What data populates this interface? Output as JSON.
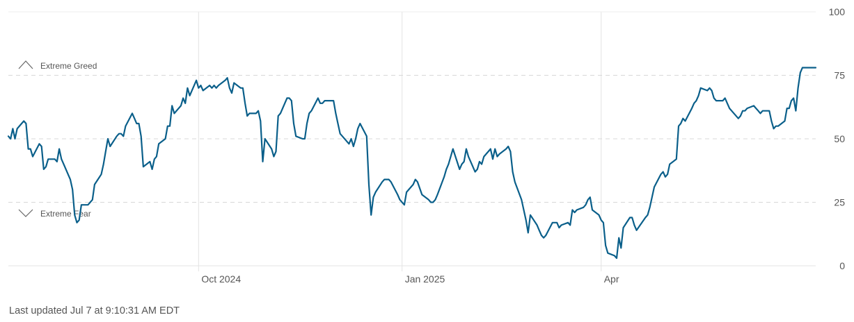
{
  "footer": {
    "last_updated": "Last updated Jul 7 at 9:10:31 AM EDT"
  },
  "colors": {
    "line": "#0a5f8a",
    "grid": "#e3e3e3",
    "dashed": "#d8d8d8",
    "text": "#555555",
    "zone_icon": "#666666"
  },
  "zones": {
    "greed": {
      "label": "Extreme Greed",
      "icon": "chevron-up-icon"
    },
    "fear": {
      "label": "Extreme Fear",
      "icon": "chevron-down-icon"
    }
  },
  "chart_data": {
    "type": "line",
    "title": "",
    "xlabel": "",
    "ylabel": "",
    "ylim": [
      0,
      100
    ],
    "y_ticks": [
      0,
      25,
      50,
      75,
      100
    ],
    "x_range": [
      "2024-07-07",
      "2025-07-07"
    ],
    "x_ticks": [
      {
        "date": "2024-10-01",
        "label": "Oct 2024"
      },
      {
        "date": "2025-01-01",
        "label": "Jan 2025"
      },
      {
        "date": "2025-04-01",
        "label": "Apr"
      }
    ],
    "grid": {
      "y": "dashed",
      "x": "vertical at tick dates"
    },
    "zone_lines": [
      25,
      75
    ],
    "series": [
      {
        "values": [
          [
            "2024-07-07",
            51
          ],
          [
            "2024-07-08",
            50
          ],
          [
            "2024-07-09",
            54
          ],
          [
            "2024-07-10",
            50
          ],
          [
            "2024-07-11",
            54
          ],
          [
            "2024-07-14",
            57
          ],
          [
            "2024-07-15",
            56
          ],
          [
            "2024-07-16",
            46
          ],
          [
            "2024-07-17",
            46
          ],
          [
            "2024-07-18",
            43
          ],
          [
            "2024-07-21",
            48
          ],
          [
            "2024-07-22",
            47
          ],
          [
            "2024-07-23",
            38
          ],
          [
            "2024-07-24",
            39
          ],
          [
            "2024-07-25",
            42
          ],
          [
            "2024-07-28",
            42
          ],
          [
            "2024-07-29",
            41
          ],
          [
            "2024-07-30",
            46
          ],
          [
            "2024-07-31",
            42
          ],
          [
            "2024-08-01",
            40
          ],
          [
            "2024-08-04",
            34
          ],
          [
            "2024-08-05",
            30
          ],
          [
            "2024-08-06",
            20
          ],
          [
            "2024-08-07",
            17
          ],
          [
            "2024-08-08",
            18
          ],
          [
            "2024-08-09",
            24
          ],
          [
            "2024-08-12",
            24
          ],
          [
            "2024-08-13",
            25
          ],
          [
            "2024-08-14",
            26
          ],
          [
            "2024-08-15",
            32
          ],
          [
            "2024-08-18",
            36
          ],
          [
            "2024-08-19",
            40
          ],
          [
            "2024-08-20",
            45
          ],
          [
            "2024-08-21",
            50
          ],
          [
            "2024-08-22",
            47
          ],
          [
            "2024-08-25",
            51
          ],
          [
            "2024-08-26",
            52
          ],
          [
            "2024-08-27",
            52
          ],
          [
            "2024-08-28",
            51
          ],
          [
            "2024-08-29",
            55
          ],
          [
            "2024-09-01",
            60
          ],
          [
            "2024-09-02",
            58
          ],
          [
            "2024-09-03",
            56
          ],
          [
            "2024-09-04",
            56
          ],
          [
            "2024-09-05",
            51
          ],
          [
            "2024-09-06",
            39
          ],
          [
            "2024-09-09",
            41
          ],
          [
            "2024-09-10",
            38
          ],
          [
            "2024-09-11",
            42
          ],
          [
            "2024-09-12",
            43
          ],
          [
            "2024-09-13",
            48
          ],
          [
            "2024-09-16",
            50
          ],
          [
            "2024-09-17",
            55
          ],
          [
            "2024-09-18",
            55
          ],
          [
            "2024-09-19",
            63
          ],
          [
            "2024-09-20",
            60
          ],
          [
            "2024-09-23",
            63
          ],
          [
            "2024-09-24",
            66
          ],
          [
            "2024-09-25",
            64
          ],
          [
            "2024-09-26",
            70
          ],
          [
            "2024-09-27",
            67
          ],
          [
            "2024-09-30",
            73
          ],
          [
            "2024-10-01",
            70
          ],
          [
            "2024-10-02",
            71
          ],
          [
            "2024-10-03",
            69
          ],
          [
            "2024-10-06",
            71
          ],
          [
            "2024-10-07",
            70
          ],
          [
            "2024-10-08",
            71
          ],
          [
            "2024-10-09",
            70
          ],
          [
            "2024-10-10",
            71
          ],
          [
            "2024-10-13",
            73
          ],
          [
            "2024-10-14",
            74
          ],
          [
            "2024-10-15",
            70
          ],
          [
            "2024-10-16",
            68
          ],
          [
            "2024-10-17",
            72
          ],
          [
            "2024-10-20",
            70
          ],
          [
            "2024-10-21",
            70
          ],
          [
            "2024-10-22",
            64
          ],
          [
            "2024-10-23",
            59
          ],
          [
            "2024-10-24",
            60
          ],
          [
            "2024-10-27",
            60
          ],
          [
            "2024-10-28",
            61
          ],
          [
            "2024-10-29",
            57
          ],
          [
            "2024-10-30",
            41
          ],
          [
            "2024-10-31",
            50
          ],
          [
            "2024-11-03",
            46
          ],
          [
            "2024-11-04",
            43
          ],
          [
            "2024-11-05",
            45
          ],
          [
            "2024-11-06",
            59
          ],
          [
            "2024-11-07",
            60
          ],
          [
            "2024-11-10",
            66
          ],
          [
            "2024-11-11",
            66
          ],
          [
            "2024-11-12",
            65
          ],
          [
            "2024-11-13",
            56
          ],
          [
            "2024-11-14",
            51
          ],
          [
            "2024-11-17",
            50
          ],
          [
            "2024-11-18",
            50
          ],
          [
            "2024-11-19",
            56
          ],
          [
            "2024-11-20",
            60
          ],
          [
            "2024-11-21",
            61
          ],
          [
            "2024-11-24",
            66
          ],
          [
            "2024-11-25",
            64
          ],
          [
            "2024-11-26",
            64
          ],
          [
            "2024-11-27",
            65
          ],
          [
            "2024-12-01",
            65
          ],
          [
            "2024-12-02",
            60
          ],
          [
            "2024-12-03",
            56
          ],
          [
            "2024-12-04",
            52
          ],
          [
            "2024-12-05",
            51
          ],
          [
            "2024-12-08",
            48
          ],
          [
            "2024-12-09",
            50
          ],
          [
            "2024-12-10",
            47
          ],
          [
            "2024-12-11",
            50
          ],
          [
            "2024-12-12",
            54
          ],
          [
            "2024-12-13",
            56
          ],
          [
            "2024-12-16",
            51
          ],
          [
            "2024-12-17",
            32
          ],
          [
            "2024-12-18",
            20
          ],
          [
            "2024-12-19",
            27
          ],
          [
            "2024-12-20",
            29
          ],
          [
            "2024-12-23",
            33
          ],
          [
            "2024-12-24",
            34
          ],
          [
            "2024-12-26",
            34
          ],
          [
            "2024-12-27",
            33
          ],
          [
            "2024-12-30",
            28
          ],
          [
            "2024-12-31",
            26
          ],
          [
            "2025-01-02",
            24
          ],
          [
            "2025-01-03",
            29
          ],
          [
            "2025-01-06",
            32
          ],
          [
            "2025-01-07",
            34
          ],
          [
            "2025-01-08",
            33
          ],
          [
            "2025-01-10",
            28
          ],
          [
            "2025-01-13",
            26
          ],
          [
            "2025-01-14",
            25
          ],
          [
            "2025-01-15",
            25
          ],
          [
            "2025-01-16",
            26
          ],
          [
            "2025-01-17",
            28
          ],
          [
            "2025-01-20",
            35
          ],
          [
            "2025-01-21",
            38
          ],
          [
            "2025-01-22",
            40
          ],
          [
            "2025-01-23",
            43
          ],
          [
            "2025-01-24",
            46
          ],
          [
            "2025-01-27",
            38
          ],
          [
            "2025-01-28",
            40
          ],
          [
            "2025-01-29",
            41
          ],
          [
            "2025-01-30",
            46
          ],
          [
            "2025-01-31",
            43
          ],
          [
            "2025-02-03",
            37
          ],
          [
            "2025-02-04",
            38
          ],
          [
            "2025-02-05",
            41
          ],
          [
            "2025-02-06",
            40
          ],
          [
            "2025-02-07",
            43
          ],
          [
            "2025-02-10",
            46
          ],
          [
            "2025-02-11",
            42
          ],
          [
            "2025-02-12",
            46
          ],
          [
            "2025-02-13",
            43
          ],
          [
            "2025-02-14",
            44
          ],
          [
            "2025-02-17",
            46
          ],
          [
            "2025-02-18",
            47
          ],
          [
            "2025-02-19",
            45
          ],
          [
            "2025-02-20",
            37
          ],
          [
            "2025-02-21",
            33
          ],
          [
            "2025-02-24",
            26
          ],
          [
            "2025-02-25",
            22
          ],
          [
            "2025-02-26",
            18
          ],
          [
            "2025-02-27",
            13
          ],
          [
            "2025-02-28",
            20
          ],
          [
            "2025-03-03",
            16
          ],
          [
            "2025-03-04",
            14
          ],
          [
            "2025-03-05",
            12
          ],
          [
            "2025-03-06",
            11
          ],
          [
            "2025-03-07",
            12
          ],
          [
            "2025-03-10",
            17
          ],
          [
            "2025-03-11",
            17
          ],
          [
            "2025-03-12",
            17
          ],
          [
            "2025-03-13",
            15
          ],
          [
            "2025-03-14",
            16
          ],
          [
            "2025-03-17",
            17
          ],
          [
            "2025-03-18",
            16
          ],
          [
            "2025-03-19",
            22
          ],
          [
            "2025-03-20",
            21
          ],
          [
            "2025-03-21",
            22
          ],
          [
            "2025-03-24",
            23
          ],
          [
            "2025-03-25",
            24
          ],
          [
            "2025-03-26",
            26
          ],
          [
            "2025-03-27",
            27
          ],
          [
            "2025-03-28",
            22
          ],
          [
            "2025-03-31",
            20
          ],
          [
            "2025-04-01",
            18
          ],
          [
            "2025-04-02",
            17
          ],
          [
            "2025-04-03",
            8
          ],
          [
            "2025-04-04",
            5
          ],
          [
            "2025-04-07",
            4
          ],
          [
            "2025-04-08",
            3
          ],
          [
            "2025-04-09",
            11
          ],
          [
            "2025-04-10",
            7
          ],
          [
            "2025-04-11",
            15
          ],
          [
            "2025-04-14",
            19
          ],
          [
            "2025-04-15",
            19
          ],
          [
            "2025-04-16",
            16
          ],
          [
            "2025-04-17",
            14
          ],
          [
            "2025-04-21",
            19
          ],
          [
            "2025-04-22",
            20
          ],
          [
            "2025-04-23",
            23
          ],
          [
            "2025-04-24",
            27
          ],
          [
            "2025-04-25",
            31
          ],
          [
            "2025-04-28",
            36
          ],
          [
            "2025-04-29",
            37
          ],
          [
            "2025-04-30",
            35
          ],
          [
            "2025-05-01",
            36
          ],
          [
            "2025-05-02",
            40
          ],
          [
            "2025-05-05",
            42
          ],
          [
            "2025-05-06",
            55
          ],
          [
            "2025-05-07",
            56
          ],
          [
            "2025-05-08",
            58
          ],
          [
            "2025-05-09",
            57
          ],
          [
            "2025-05-12",
            62
          ],
          [
            "2025-05-13",
            64
          ],
          [
            "2025-05-14",
            65
          ],
          [
            "2025-05-15",
            67
          ],
          [
            "2025-05-16",
            70
          ],
          [
            "2025-05-19",
            69
          ],
          [
            "2025-05-20",
            70
          ],
          [
            "2025-05-21",
            69
          ],
          [
            "2025-05-22",
            66
          ],
          [
            "2025-05-23",
            65
          ],
          [
            "2025-05-26",
            65
          ],
          [
            "2025-05-27",
            66
          ],
          [
            "2025-05-28",
            64
          ],
          [
            "2025-05-29",
            62
          ],
          [
            "2025-05-30",
            61
          ],
          [
            "2025-06-02",
            58
          ],
          [
            "2025-06-03",
            59
          ],
          [
            "2025-06-04",
            61
          ],
          [
            "2025-06-05",
            61
          ],
          [
            "2025-06-06",
            62
          ],
          [
            "2025-06-09",
            63
          ],
          [
            "2025-06-10",
            62
          ],
          [
            "2025-06-11",
            61
          ],
          [
            "2025-06-12",
            60
          ],
          [
            "2025-06-13",
            61
          ],
          [
            "2025-06-16",
            61
          ],
          [
            "2025-06-17",
            57
          ],
          [
            "2025-06-18",
            54
          ],
          [
            "2025-06-19",
            55
          ],
          [
            "2025-06-20",
            55
          ],
          [
            "2025-06-23",
            57
          ],
          [
            "2025-06-24",
            62
          ],
          [
            "2025-06-25",
            62
          ],
          [
            "2025-06-26",
            65
          ],
          [
            "2025-06-27",
            66
          ],
          [
            "2025-06-28",
            61
          ],
          [
            "2025-06-29",
            70
          ],
          [
            "2025-06-30",
            76
          ],
          [
            "2025-07-01",
            78
          ],
          [
            "2025-07-02",
            78
          ],
          [
            "2025-07-03",
            78
          ],
          [
            "2025-07-07",
            78
          ]
        ]
      }
    ]
  }
}
